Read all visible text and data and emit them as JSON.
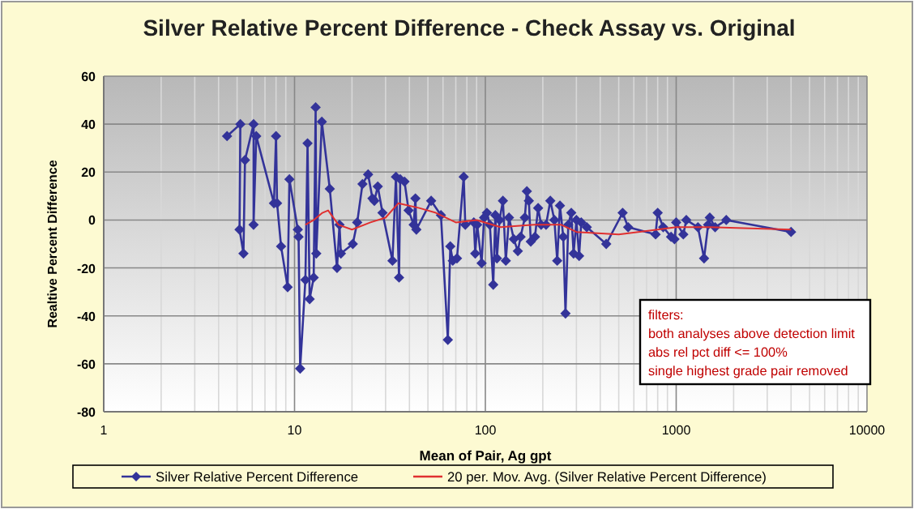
{
  "chart_data": {
    "type": "line",
    "title": "Silver Relative Percent Difference - Check Assay vs. Original",
    "xlabel": "Mean of Pair, Ag gpt",
    "ylabel": "Realtive Percent Difference",
    "log": "x",
    "xlim": [
      1,
      10000
    ],
    "xticks": [
      1,
      10,
      100,
      1000,
      10000
    ],
    "ylim": [
      -80,
      60
    ],
    "yticks": [
      -80,
      -60,
      -40,
      -20,
      0,
      20,
      40,
      60
    ],
    "grid": true,
    "legend": "bottom",
    "marker": "diamond",
    "line_style": "solid",
    "series": [
      {
        "name": "Silver Relative Percent Difference",
        "color": "#333399",
        "x": [
          4.43,
          5.2,
          5.15,
          5.4,
          5.5,
          6.1,
          6.1,
          6.3,
          7.8,
          8.0,
          8.1,
          8.5,
          9.2,
          9.4,
          10.4,
          10.5,
          10.7,
          11.4,
          11.7,
          12.0,
          12.6,
          12.9,
          13.0,
          13.9,
          15.3,
          16.7,
          17.2,
          17.5,
          20.2,
          21.3,
          22.7,
          24.3,
          25.6,
          26.2,
          27.3,
          28.9,
          32.6,
          34.0,
          35.3,
          35.8,
          37.7,
          39.6,
          42.1,
          43.0,
          43.5,
          52,
          58.5,
          63.6,
          65.5,
          67.5,
          71,
          77,
          78.5,
          87,
          88.5,
          90.6,
          95.6,
          98.5,
          101.9,
          105.6,
          110,
          112.8,
          115,
          118.6,
          123.6,
          128,
          133,
          141,
          148,
          153,
          161,
          165,
          169,
          173,
          182,
          189,
          196,
          208,
          219,
          230,
          238,
          246,
          256,
          263,
          272,
          282,
          290,
          300,
          310,
          318,
          340,
          430,
          524,
          560,
          780,
          800,
          855,
          940,
          980,
          1000,
          1090,
          1130,
          1300,
          1400,
          1470,
          1500,
          1600,
          1830,
          4000
        ],
        "values": [
          35,
          40,
          -4,
          -14,
          25,
          40,
          -2,
          35,
          7,
          35,
          7,
          -11,
          -28,
          17,
          -4,
          -7,
          -62,
          -25,
          32,
          -33,
          -24,
          47,
          -14,
          41,
          13,
          -20,
          -2,
          -14,
          -10,
          -1,
          15,
          19,
          9,
          8,
          14,
          3,
          -17,
          18,
          -24,
          17,
          16,
          4,
          -2,
          9,
          -4,
          8,
          2,
          -50,
          -11,
          -17,
          -16,
          18,
          -2,
          -1,
          -14,
          -2,
          -18,
          1,
          3,
          -2,
          -27,
          2,
          -16,
          0,
          8,
          -17,
          1,
          -8,
          -13,
          -7,
          1,
          12,
          8,
          -9,
          -7,
          5,
          -2,
          -2,
          8,
          0,
          -17,
          6,
          -7,
          -39,
          -2,
          3,
          -14,
          0,
          -15,
          -1,
          -3,
          -10,
          3,
          -3,
          -6,
          3,
          -3,
          -7,
          -8,
          -1,
          -6,
          0,
          -3,
          -16,
          -2,
          1,
          -3,
          0,
          -5
        ]
      },
      {
        "name": "20 per. Mov. Avg. (Silver Relative Percent Difference)",
        "color": "#e03030",
        "marker": "none",
        "x": [
          11.4,
          12.6,
          14,
          15,
          17,
          20,
          25,
          30,
          35,
          45,
          55,
          70,
          90,
          120,
          180,
          250,
          300,
          500,
          800,
          1000,
          1500,
          4000
        ],
        "values": [
          -2,
          0,
          3,
          4,
          -2,
          -4,
          -1,
          1,
          7,
          5,
          3,
          -1,
          0,
          -3,
          -2,
          -2,
          -5,
          -6,
          -4,
          -3,
          -3,
          -4
        ]
      }
    ],
    "annotations": [
      "filters:",
      "both analyses above detection limit",
      "abs rel pct diff <= 100%",
      "single highest grade pair removed"
    ]
  }
}
